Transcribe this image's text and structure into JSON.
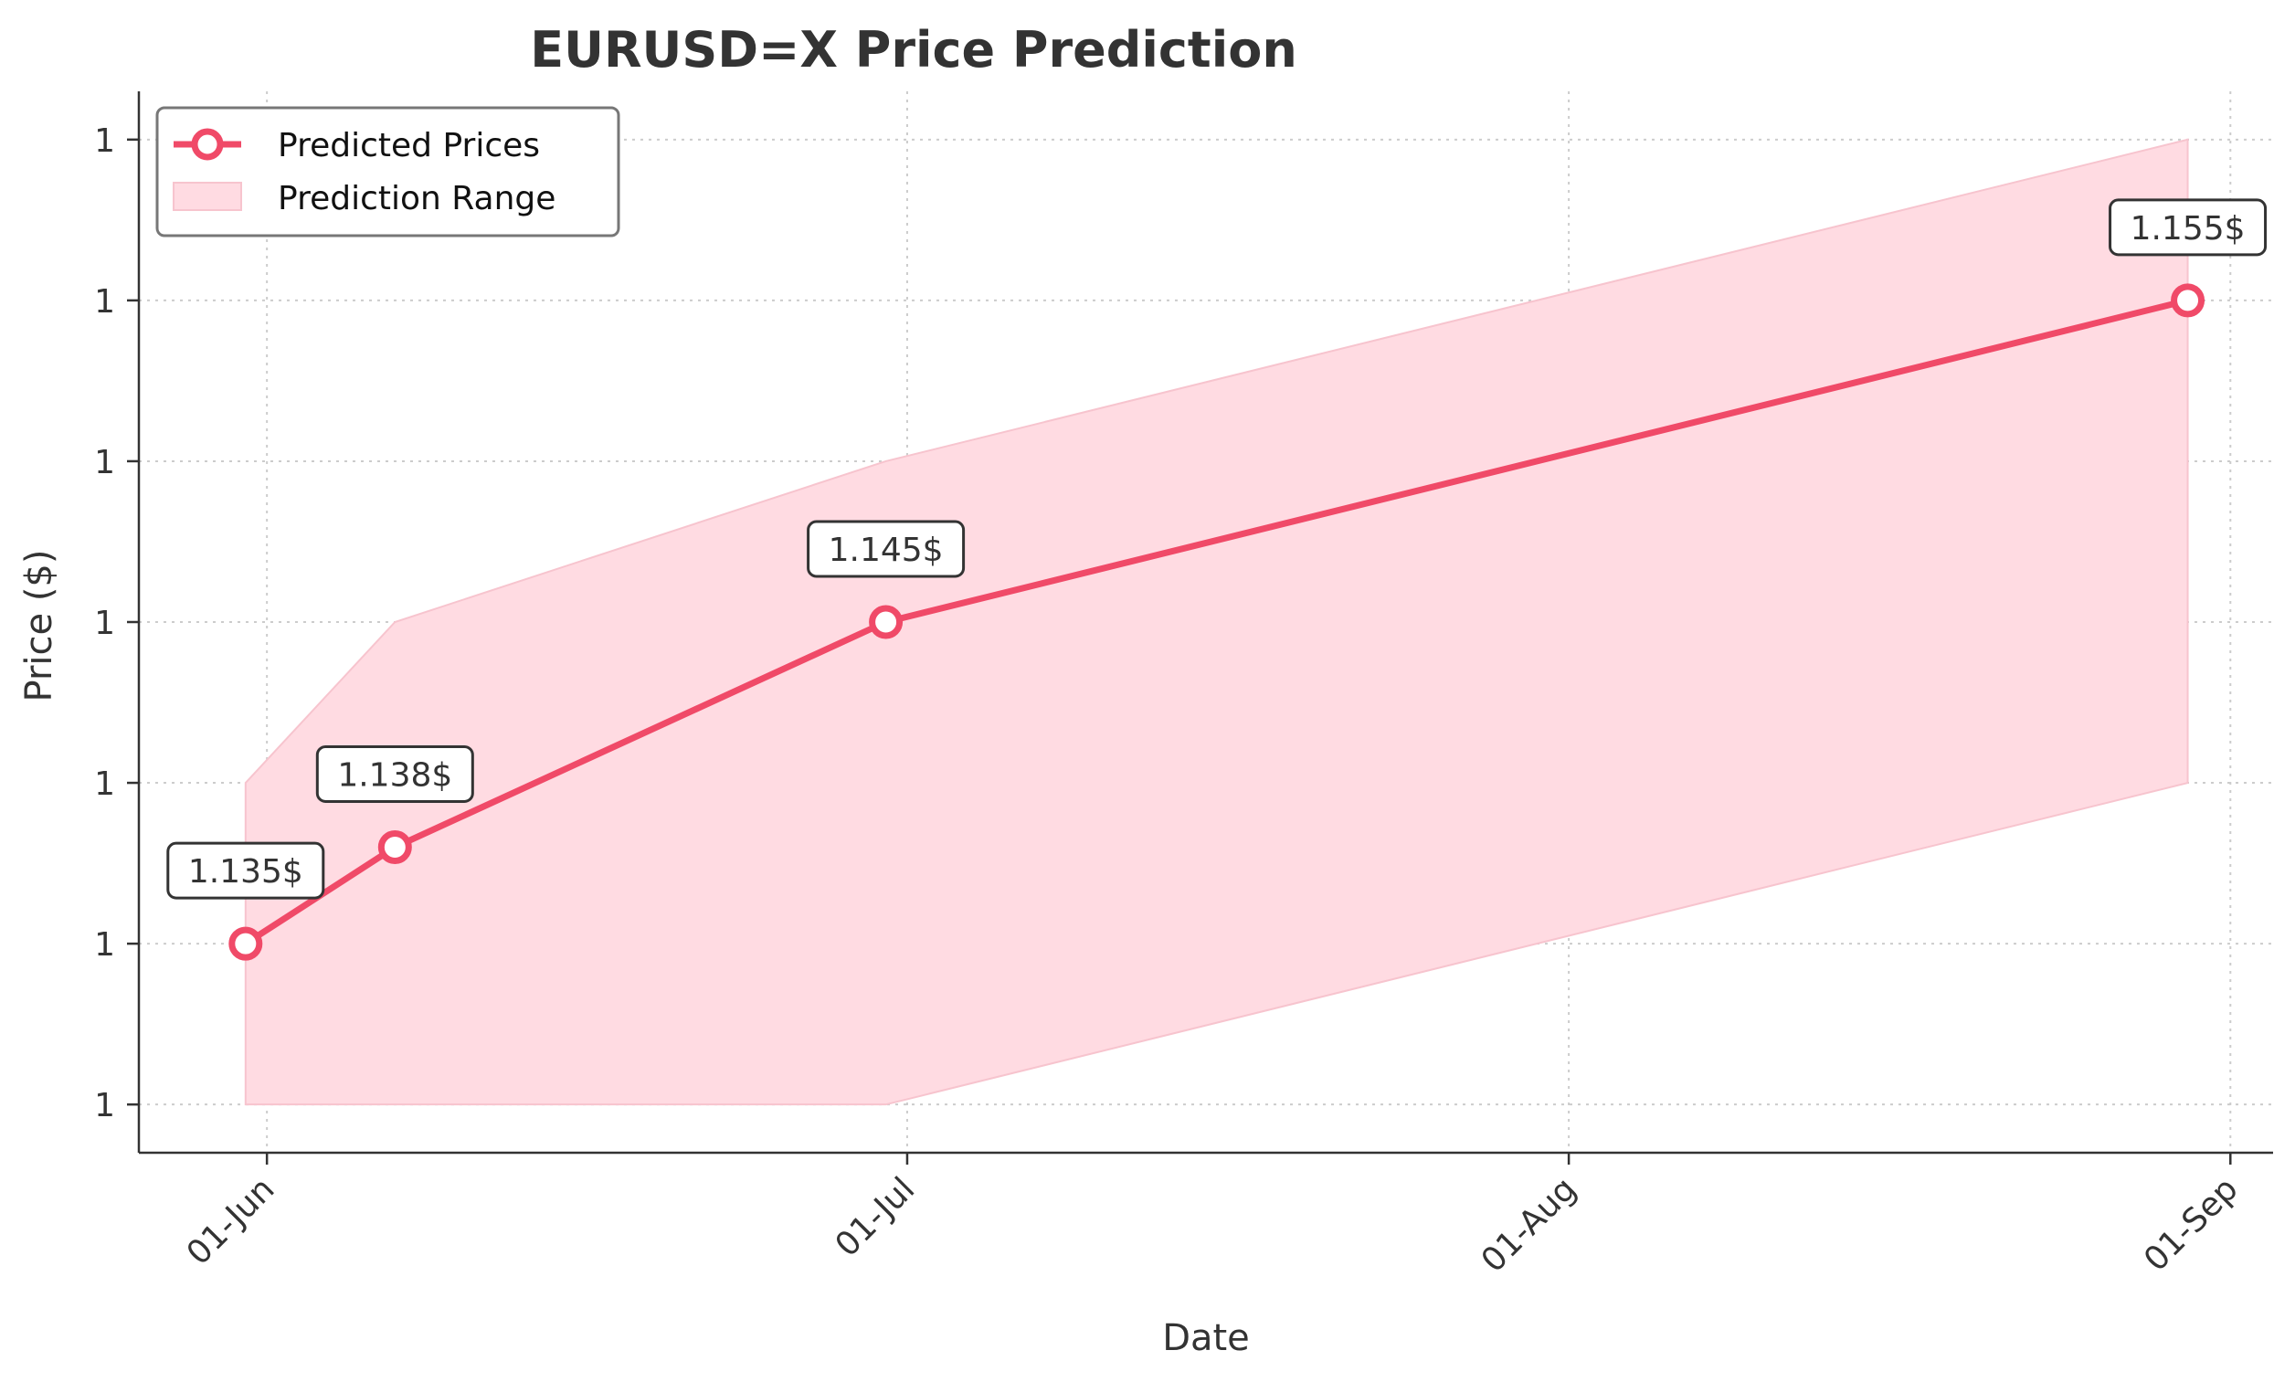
{
  "chart_data": {
    "type": "line",
    "title": "EURUSD=X Price Prediction",
    "xlabel": "Date",
    "ylabel": "Price ($)",
    "x_ticks": [
      {
        "date": "2025-06-01",
        "label": "01-Jun"
      },
      {
        "date": "2025-07-01",
        "label": "01-Jul"
      },
      {
        "date": "2025-08-01",
        "label": "01-Aug"
      },
      {
        "date": "2025-09-01",
        "label": "01-Sep"
      }
    ],
    "xlim": [
      "2025-05-26",
      "2025-09-03"
    ],
    "y_ticks": [
      {
        "value": 1.13,
        "label": "1"
      },
      {
        "value": 1.135,
        "label": "1"
      },
      {
        "value": 1.14,
        "label": "1"
      },
      {
        "value": 1.145,
        "label": "1"
      },
      {
        "value": 1.15,
        "label": "1"
      },
      {
        "value": 1.155,
        "label": "1"
      },
      {
        "value": 1.16,
        "label": "1"
      }
    ],
    "ylim": [
      1.1285,
      1.1615
    ],
    "grid": true,
    "legend_position": "top-left",
    "series": [
      {
        "name": "Predicted Prices",
        "color": "#f04a68",
        "x": [
          "2025-05-31",
          "2025-06-07",
          "2025-06-30",
          "2025-08-30"
        ],
        "y": [
          1.135,
          1.138,
          1.145,
          1.155
        ],
        "labels": [
          "1.135$",
          "1.138$",
          "1.145$",
          "1.155$"
        ]
      }
    ],
    "band": {
      "name": "Prediction Range",
      "color": "#ffdbe2",
      "x": [
        "2025-05-31",
        "2025-06-07",
        "2025-06-30",
        "2025-08-30"
      ],
      "lower": [
        1.13,
        1.13,
        1.13,
        1.14
      ],
      "upper": [
        1.14,
        1.145,
        1.15,
        1.16
      ]
    }
  }
}
